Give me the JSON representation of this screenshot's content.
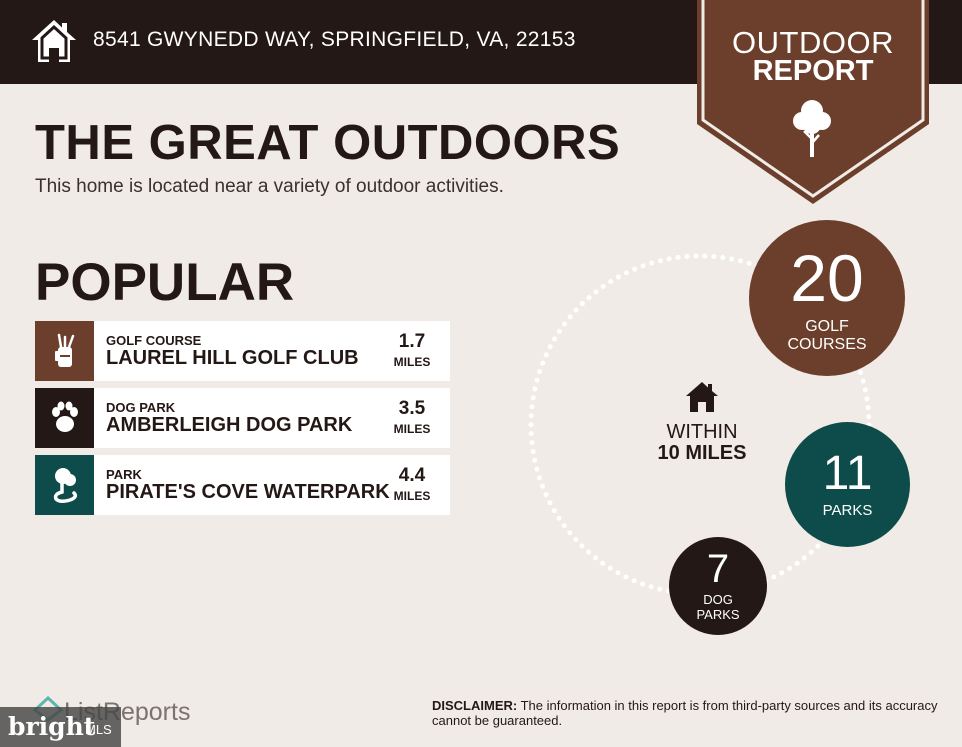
{
  "header": {
    "address": "8541 GWYNEDD WAY, SPRINGFIELD, VA, 22153",
    "home_icon": "home-icon"
  },
  "badge": {
    "line1": "OUTDOOR",
    "line2": "REPORT",
    "icon": "tree-icon"
  },
  "title": "THE GREAT OUTDOORS",
  "subtitle": "This home is located near a variety of outdoor activities.",
  "popular": {
    "heading": "POPULAR",
    "items": [
      {
        "category": "GOLF COURSE",
        "name": "LAUREL HILL GOLF CLUB",
        "distance": "1.7",
        "unit": "MILES",
        "icon": "golf-bag-icon",
        "color": "#6b3f2b"
      },
      {
        "category": "DOG PARK",
        "name": "AMBERLEIGH DOG PARK",
        "distance": "3.5",
        "unit": "MILES",
        "icon": "paw-icon",
        "color": "#231815"
      },
      {
        "category": "PARK",
        "name": "PIRATE'S COVE WATERPARK",
        "distance": "4.4",
        "unit": "MILES",
        "icon": "park-icon",
        "color": "#0d4c4a"
      }
    ]
  },
  "within": {
    "line1": "WITHIN",
    "line2": "10 MILES",
    "icon": "home-icon"
  },
  "stats": {
    "golf": {
      "value": "20",
      "label_1": "GOLF",
      "label_2": "COURSES",
      "color": "#6b3f2b"
    },
    "parks": {
      "value": "11",
      "label_1": "PARKS",
      "color": "#0d4c4a"
    },
    "dogs": {
      "value": "7",
      "label_1": "DOG",
      "label_2": "PARKS",
      "color": "#231815"
    }
  },
  "footer": {
    "brand": "ListReports",
    "disclaimer_label": "DISCLAIMER:",
    "disclaimer_text": "The information in this report is from third-party sources and its accuracy cannot be guaranteed.",
    "mls_brand": "bright",
    "mls_suffix": "MLS"
  }
}
